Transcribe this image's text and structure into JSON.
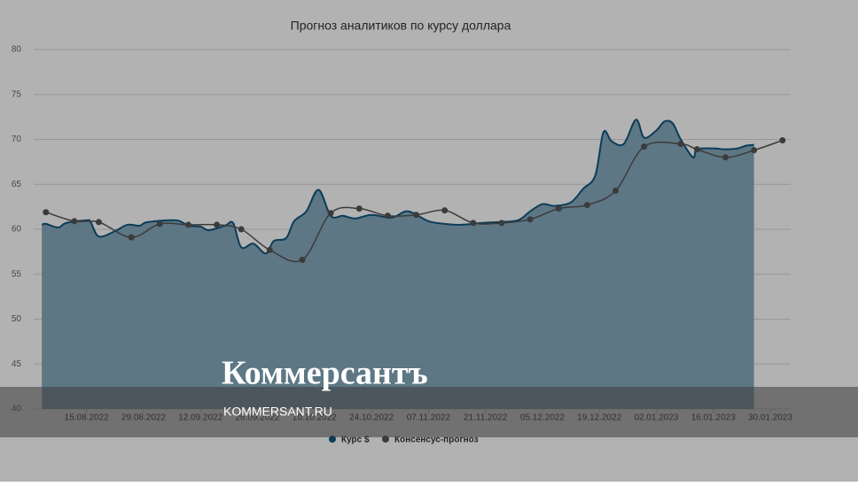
{
  "chart_data": {
    "type": "area-line",
    "title": "Прогноз аналитиков по курсу доллара",
    "xlim": [
      "02.08.2022",
      "04.02.2023"
    ],
    "xticks": [
      "15.08.2022",
      "29.08.2022",
      "12.09.2022",
      "26.09.2022",
      "10.10.2022",
      "24.10.2022",
      "07.11.2022",
      "21.11.2022",
      "05.12.2022",
      "19.12.2022",
      "02.01.2023",
      "16.01.2023",
      "30.01.2023"
    ],
    "ylim": [
      40,
      80
    ],
    "yticks": [
      40,
      45,
      50,
      55,
      60,
      65,
      70,
      75,
      80
    ],
    "grid": true,
    "legend": "bottom",
    "series": [
      {
        "name": "Курс $",
        "color": "#10577f",
        "fill": "#87abbf",
        "x": [
          "04.08.2022",
          "05.08.2022",
          "08.08.2022",
          "10.08.2022",
          "15.08.2022",
          "16.08.2022",
          "18.08.2022",
          "22.08.2022",
          "25.08.2022",
          "28.08.2022",
          "30.08.2022",
          "06.09.2022",
          "09.09.2022",
          "12.09.2022",
          "14.09.2022",
          "18.09.2022",
          "20.09.2022",
          "22.09.2022",
          "25.09.2022",
          "28.09.2022",
          "30.09.2022",
          "03.10.2022",
          "05.10.2022",
          "08.10.2022",
          "11.10.2022",
          "14.10.2022",
          "17.10.2022",
          "20.10.2022",
          "24.10.2022",
          "29.10.2022",
          "02.11.2022",
          "07.11.2022",
          "11.11.2022",
          "15.11.2022",
          "20.11.2022",
          "24.11.2022",
          "29.11.2022",
          "02.12.2022",
          "05.12.2022",
          "08.12.2022",
          "12.12.2022",
          "15.12.2022",
          "18.12.2022",
          "20.12.2022",
          "22.12.2022",
          "25.12.2022",
          "28.12.2022",
          "30.12.2022",
          "02.01.2023",
          "04.01.2023",
          "06.01.2023",
          "08.01.2023",
          "11.01.2023",
          "12.01.2023",
          "16.01.2023",
          "19.01.2023",
          "22.01.2023",
          "24.01.2023",
          "26.01.2023"
        ],
        "values": [
          60.5,
          60.6,
          60.2,
          60.7,
          61.0,
          60.8,
          59.2,
          59.8,
          60.5,
          60.4,
          60.8,
          61.0,
          60.4,
          60.3,
          59.9,
          60.4,
          60.7,
          58.0,
          58.4,
          57.3,
          58.7,
          59.0,
          60.9,
          62.0,
          64.4,
          61.5,
          61.5,
          61.2,
          61.6,
          61.3,
          62.0,
          60.9,
          60.6,
          60.5,
          60.7,
          60.8,
          61.0,
          62.0,
          62.8,
          62.6,
          63.0,
          64.5,
          66.0,
          70.8,
          69.8,
          69.5,
          72.2,
          70.2,
          71.0,
          72.0,
          71.8,
          70.0,
          68.0,
          68.9,
          69.0,
          68.9,
          69.0,
          69.3,
          69.4
        ]
      },
      {
        "name": "Консенсус-прогноз",
        "color": "#555555",
        "x": [
          "05.08.2022",
          "12.08.2022",
          "18.08.2022",
          "26.08.2022",
          "02.09.2022",
          "09.09.2022",
          "16.09.2022",
          "22.09.2022",
          "29.09.2022",
          "07.10.2022",
          "14.10.2022",
          "21.10.2022",
          "28.10.2022",
          "04.11.2022",
          "11.11.2022",
          "18.11.2022",
          "25.11.2022",
          "02.12.2022",
          "09.12.2022",
          "16.12.2022",
          "23.12.2022",
          "30.12.2022",
          "08.01.2023",
          "12.01.2023",
          "19.01.2023",
          "26.01.2023",
          "02.02.2023"
        ],
        "values": [
          61.9,
          60.9,
          60.8,
          59.1,
          60.6,
          60.5,
          60.5,
          60.0,
          57.7,
          56.6,
          61.8,
          62.3,
          61.5,
          61.6,
          62.1,
          60.7,
          60.7,
          61.1,
          62.3,
          62.7,
          64.3,
          69.2,
          69.5,
          68.9,
          68.0,
          68.8,
          69.9
        ]
      }
    ]
  },
  "watermark": {
    "logo": "Коммерсантъ",
    "url": "KOMMERSANT.RU"
  }
}
